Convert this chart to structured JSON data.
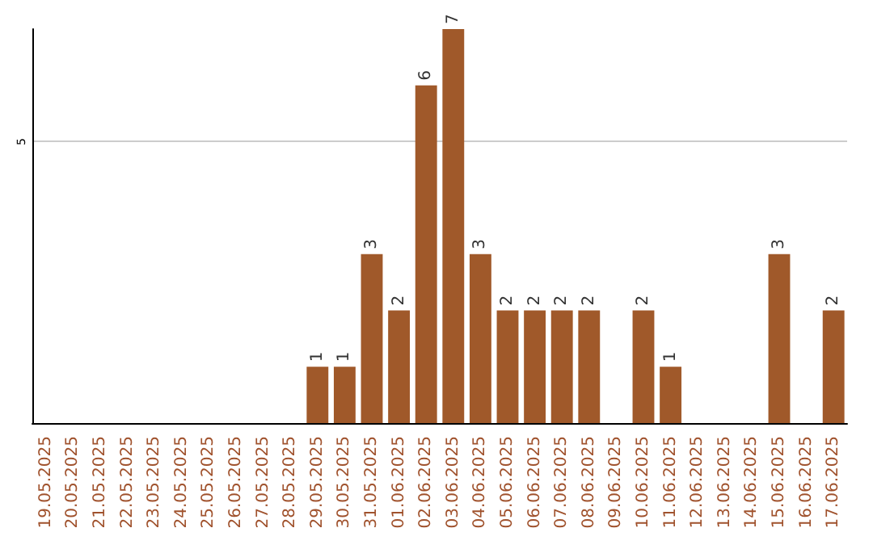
{
  "chart_data": {
    "type": "bar",
    "categories": [
      "19.05.2025",
      "20.05.2025",
      "21.05.2025",
      "22.05.2025",
      "23.05.2025",
      "24.05.2025",
      "25.05.2025",
      "26.05.2025",
      "27.05.2025",
      "28.05.2025",
      "29.05.2025",
      "30.05.2025",
      "31.05.2025",
      "01.06.2025",
      "02.06.2025",
      "03.06.2025",
      "04.06.2025",
      "05.06.2025",
      "06.06.2025",
      "07.06.2025",
      "08.06.2025",
      "09.06.2025",
      "10.06.2025",
      "11.06.2025",
      "12.06.2025",
      "13.06.2025",
      "14.06.2025",
      "15.06.2025",
      "16.06.2025",
      "17.06.2025"
    ],
    "values": [
      0,
      0,
      0,
      0,
      0,
      0,
      0,
      0,
      0,
      0,
      1,
      1,
      3,
      2,
      6,
      7,
      3,
      2,
      2,
      2,
      2,
      0,
      2,
      1,
      0,
      0,
      0,
      3,
      0,
      2
    ],
    "value_labels": [
      null,
      null,
      null,
      null,
      null,
      null,
      null,
      null,
      null,
      null,
      "1",
      "1",
      "3",
      "2",
      "6",
      "7",
      "3",
      "2",
      "2",
      "2",
      "2",
      null,
      "2",
      "1",
      null,
      null,
      null,
      "3",
      null,
      "2"
    ],
    "color": "#a0592a",
    "ylim": [
      0,
      7
    ],
    "yticks": [
      5
    ],
    "grid": "y"
  }
}
